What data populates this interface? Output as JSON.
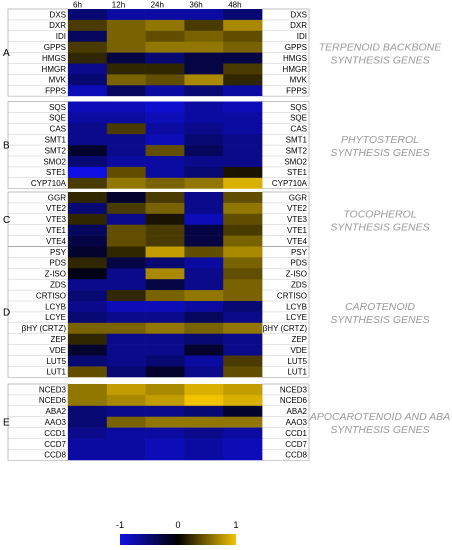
{
  "chart_data": {
    "type": "heatmap",
    "columns": [
      "6h",
      "12h",
      "24h",
      "36h",
      "48h"
    ],
    "color_scale": {
      "min": -1,
      "mid": 0,
      "max": 1,
      "low_color": "#1010e6",
      "mid_color": "#000000",
      "high_color": "#f2c400",
      "ticks": [
        "-1",
        "0",
        "1"
      ]
    },
    "groups": [
      {
        "letter": "A",
        "title": [
          "TERPENOID BACKBONE",
          "SYNTHESIS GENES"
        ],
        "rows": [
          {
            "gene": "DXS",
            "values": [
              -0.5,
              -0.7,
              -0.7,
              -0.7,
              -0.5
            ]
          },
          {
            "gene": "DXR",
            "values": [
              0.3,
              0.5,
              0.6,
              0.3,
              0.7
            ]
          },
          {
            "gene": "IDI",
            "values": [
              -0.4,
              0.5,
              0.4,
              0.5,
              0.4
            ]
          },
          {
            "gene": "GPPS",
            "values": [
              0.3,
              0.5,
              0.6,
              0.6,
              0.5
            ]
          },
          {
            "gene": "HMGS",
            "values": [
              0.2,
              -0.3,
              -0.5,
              -0.3,
              -0.3
            ]
          },
          {
            "gene": "HMGR",
            "values": [
              -0.6,
              0.2,
              0.2,
              -0.3,
              0.3
            ]
          },
          {
            "gene": "MVK",
            "values": [
              -0.5,
              0.5,
              0.4,
              0.7,
              0.2
            ]
          },
          {
            "gene": "FPPS",
            "values": [
              -0.8,
              -0.4,
              -0.7,
              -0.5,
              -0.7
            ]
          }
        ]
      },
      {
        "letter": "B",
        "title": [
          "PHYTOSTEROL",
          "SYNTHESIS GENES"
        ],
        "rows": [
          {
            "gene": "SQS",
            "values": [
              -0.8,
              -0.8,
              -0.9,
              -0.7,
              -0.8
            ]
          },
          {
            "gene": "SQE",
            "values": [
              -0.7,
              -0.7,
              -0.8,
              -0.7,
              -0.7
            ]
          },
          {
            "gene": "CAS",
            "values": [
              -0.6,
              0.3,
              -0.7,
              -0.6,
              -0.7
            ]
          },
          {
            "gene": "SMT1",
            "values": [
              -0.6,
              -0.6,
              -0.8,
              -0.5,
              -0.6
            ]
          },
          {
            "gene": "SMT2",
            "values": [
              -0.2,
              -0.6,
              0.4,
              -0.4,
              -0.6
            ]
          },
          {
            "gene": "SMO2",
            "values": [
              -0.5,
              -0.7,
              -0.7,
              -0.6,
              -0.6
            ]
          },
          {
            "gene": "STE1",
            "values": [
              -1.0,
              0.4,
              -0.7,
              -0.5,
              0.1
            ]
          },
          {
            "gene": "CYP710A",
            "values": [
              0.3,
              0.6,
              0.5,
              0.6,
              0.9
            ]
          }
        ]
      },
      {
        "letter": "C",
        "title": [
          "TOCOPHEROL",
          "SYNTHESIS GENES"
        ],
        "rows": [
          {
            "gene": "GGR",
            "values": [
              0.2,
              -0.2,
              0.3,
              -0.6,
              0.4
            ]
          },
          {
            "gene": "VTE2",
            "values": [
              -0.5,
              0.3,
              0.5,
              -0.6,
              0.6
            ]
          },
          {
            "gene": "VTE3",
            "values": [
              0.2,
              -0.6,
              0.1,
              -0.8,
              0.4
            ]
          },
          {
            "gene": "VTE1",
            "values": [
              -0.4,
              0.4,
              0.3,
              -0.3,
              0.3
            ]
          },
          {
            "gene": "VTE4",
            "values": [
              -0.3,
              0.4,
              0.3,
              -0.3,
              0.5
            ]
          }
        ]
      },
      {
        "letter": "D",
        "title": [
          "CAROTENOID",
          "SYNTHESIS GENES"
        ],
        "rows": [
          {
            "gene": "PSY",
            "values": [
              -0.2,
              0.2,
              0.8,
              0.4,
              0.7
            ]
          },
          {
            "gene": "PDS",
            "values": [
              0.2,
              -0.3,
              -0.5,
              -0.7,
              0.5
            ]
          },
          {
            "gene": "Z-ISO",
            "values": [
              -0.1,
              -0.6,
              0.7,
              -0.6,
              0.4
            ]
          },
          {
            "gene": "ZDS",
            "values": [
              -0.6,
              -0.6,
              -0.3,
              -0.6,
              0.5
            ]
          },
          {
            "gene": "CRTISO",
            "values": [
              -0.5,
              0.2,
              0.5,
              0.6,
              0.5
            ]
          },
          {
            "gene": "LCYB",
            "values": [
              -0.6,
              -0.8,
              -0.8,
              -0.7,
              -0.5
            ]
          },
          {
            "gene": "LCYE",
            "values": [
              -0.5,
              -0.6,
              -0.6,
              -0.4,
              -0.6
            ]
          },
          {
            "gene": "βHY (CRTZ)",
            "values": [
              0.5,
              0.5,
              0.6,
              0.5,
              0.6
            ]
          },
          {
            "gene": "ZEP",
            "values": [
              0.2,
              -0.6,
              -0.6,
              -0.5,
              -0.6
            ]
          },
          {
            "gene": "VDE",
            "values": [
              -0.2,
              -0.6,
              -0.6,
              -0.2,
              -0.6
            ]
          },
          {
            "gene": "LUT5",
            "values": [
              -0.5,
              -0.6,
              -0.5,
              -0.7,
              0.3
            ]
          },
          {
            "gene": "LUT1",
            "values": [
              0.4,
              -0.5,
              -0.2,
              -0.6,
              0.4
            ]
          }
        ]
      },
      {
        "letter": "E",
        "title": [
          "APOCAROTENOID AND ABA",
          "SYNTHESIS GENES"
        ],
        "rows": [
          {
            "gene": "NCED3",
            "values": [
              0.6,
              0.8,
              0.7,
              0.9,
              0.8
            ]
          },
          {
            "gene": "NCED6",
            "values": [
              0.6,
              0.7,
              0.8,
              1.0,
              0.9
            ]
          },
          {
            "gene": "ABA2",
            "values": [
              -0.5,
              -0.6,
              -0.6,
              -0.5,
              -0.2
            ]
          },
          {
            "gene": "AAO3",
            "values": [
              -0.5,
              0.5,
              0.6,
              0.6,
              0.6
            ]
          },
          {
            "gene": "CCD1",
            "values": [
              -0.6,
              -0.7,
              -0.7,
              -0.6,
              -0.7
            ]
          },
          {
            "gene": "CCD7",
            "values": [
              -0.7,
              -0.7,
              -0.8,
              -0.7,
              -0.8
            ]
          },
          {
            "gene": "CCD8",
            "values": [
              -0.7,
              -0.7,
              -0.8,
              -0.7,
              -0.8
            ]
          }
        ]
      }
    ]
  }
}
